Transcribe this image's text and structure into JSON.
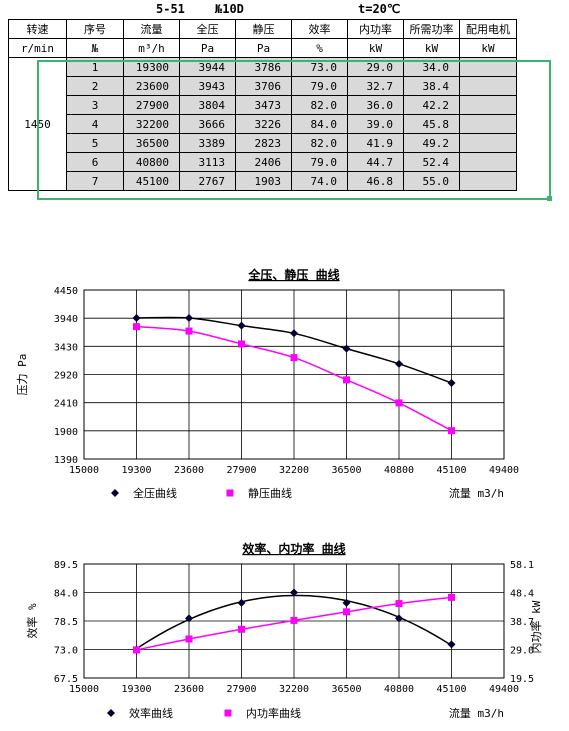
{
  "header": {
    "model": "5-51",
    "number": "№10D",
    "temperature": "t=20℃"
  },
  "table": {
    "headers": [
      "转速",
      "序号",
      "流量",
      "全压",
      "静压",
      "效率",
      "内功率",
      "所需功率",
      "配用电机"
    ],
    "units": [
      "r/min",
      "№",
      "m³/h",
      "Pa",
      "Pa",
      "%",
      "kW",
      "kW",
      "kW"
    ],
    "speed": "1450",
    "rows": [
      [
        "1",
        "19300",
        "3944",
        "3786",
        "73.0",
        "29.0",
        "34.0",
        ""
      ],
      [
        "2",
        "23600",
        "3943",
        "3706",
        "79.0",
        "32.7",
        "38.4",
        ""
      ],
      [
        "3",
        "27900",
        "3804",
        "3473",
        "82.0",
        "36.0",
        "42.2",
        ""
      ],
      [
        "4",
        "32200",
        "3666",
        "3226",
        "84.0",
        "39.0",
        "45.8",
        ""
      ],
      [
        "5",
        "36500",
        "3389",
        "2823",
        "82.0",
        "41.9",
        "49.2",
        ""
      ],
      [
        "6",
        "40800",
        "3113",
        "2406",
        "79.0",
        "44.7",
        "52.4",
        ""
      ],
      [
        "7",
        "45100",
        "2767",
        "1903",
        "74.0",
        "46.8",
        "55.0",
        ""
      ]
    ]
  },
  "chart_data": [
    {
      "type": "line",
      "title": "全压、静压 曲线",
      "ylabel": "压力 Pa",
      "xlabel": "流量 m3/h",
      "x": [
        19300,
        23600,
        27900,
        32200,
        36500,
        40800,
        45100
      ],
      "xlim": [
        15000,
        49400
      ],
      "ylim": [
        1390,
        4450
      ],
      "xticks": [
        "15000",
        "19300",
        "23600",
        "27900",
        "32200",
        "36500",
        "40800",
        "45100",
        "49400"
      ],
      "yticks": [
        "1390",
        "1900",
        "2410",
        "2920",
        "3430",
        "3940",
        "4450"
      ],
      "grid": true,
      "legend": "bottom",
      "series": [
        {
          "name": "全压曲线",
          "color": "#000033",
          "marker": "diamond",
          "values": [
            3944,
            3943,
            3804,
            3666,
            3389,
            3113,
            2767
          ]
        },
        {
          "name": "静压曲线",
          "color": "#ff00ff",
          "marker": "square",
          "values": [
            3786,
            3706,
            3473,
            3226,
            2823,
            2406,
            1903
          ]
        }
      ]
    },
    {
      "type": "line",
      "title": "效率、内功率 曲线",
      "ylabel": "效率 %",
      "y2label": "内功率 kW",
      "xlabel": "流量 m3/h",
      "x": [
        19300,
        23600,
        27900,
        32200,
        36500,
        40800,
        45100
      ],
      "xlim": [
        15000,
        49400
      ],
      "ylim": [
        67.5,
        89.5
      ],
      "y2lim": [
        19.5,
        58.1
      ],
      "xticks": [
        "15000",
        "19300",
        "23600",
        "27900",
        "32200",
        "36500",
        "40800",
        "45100",
        "49400"
      ],
      "yticks": [
        "67.5",
        "73.0",
        "78.5",
        "84.0",
        "89.5"
      ],
      "y2ticks": [
        "19.5",
        "29.0",
        "38.7",
        "48.4",
        "58.1"
      ],
      "grid": true,
      "legend": "bottom",
      "series": [
        {
          "name": "效率曲线",
          "color": "#000033",
          "marker": "diamond",
          "axis": "left",
          "values": [
            73.0,
            79.0,
            82.0,
            84.0,
            82.0,
            79.0,
            74.0
          ]
        },
        {
          "name": "内功率曲线",
          "color": "#ff00ff",
          "marker": "square",
          "axis": "right",
          "values": [
            29.0,
            32.7,
            36.0,
            39.0,
            41.9,
            44.7,
            46.8
          ]
        }
      ]
    }
  ]
}
